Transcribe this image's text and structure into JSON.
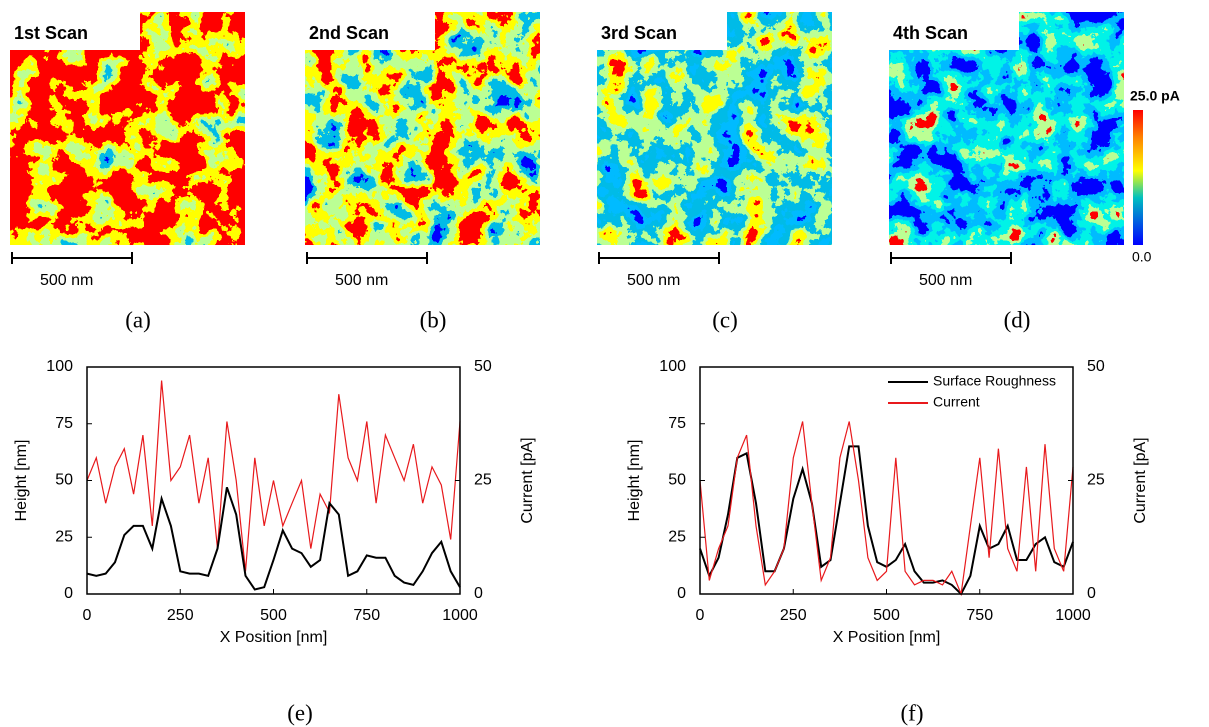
{
  "scans": [
    {
      "title": "1st Scan",
      "scale_bar": "500 nm",
      "caption": "(a)"
    },
    {
      "title": "2nd Scan",
      "scale_bar": "500 nm",
      "caption": "(b)"
    },
    {
      "title": "3rd Scan",
      "scale_bar": "500 nm",
      "caption": "(c)"
    },
    {
      "title": "4th Scan",
      "scale_bar": "500 nm",
      "caption": "(d)"
    }
  ],
  "colorbar": {
    "max_label": "25.0 pA",
    "min_label": "0.0"
  },
  "chart_data": [
    {
      "type": "line",
      "caption": "(e)",
      "xlabel": "X Position [nm]",
      "ylabel": "Height [nm]",
      "y2label": "Current [pA]",
      "xlim": [
        0,
        1000
      ],
      "xticks": [
        0,
        250,
        500,
        750,
        1000
      ],
      "ylim": [
        0,
        100
      ],
      "yticks": [
        0,
        25,
        50,
        75,
        100
      ],
      "y2lim": [
        0,
        50
      ],
      "y2ticks": [
        0,
        25,
        50
      ],
      "x": [
        0,
        25,
        50,
        75,
        100,
        125,
        150,
        175,
        200,
        225,
        250,
        275,
        300,
        325,
        350,
        375,
        400,
        425,
        450,
        475,
        500,
        525,
        550,
        575,
        600,
        625,
        650,
        675,
        700,
        725,
        750,
        775,
        800,
        825,
        850,
        875,
        900,
        925,
        950,
        975,
        1000
      ],
      "series": [
        {
          "color": "#e8191c",
          "axis": "y2",
          "values": [
            25,
            30,
            20,
            28,
            32,
            22,
            35,
            15,
            47,
            25,
            28,
            35,
            20,
            30,
            10,
            38,
            25,
            5,
            30,
            15,
            25,
            15,
            20,
            25,
            10,
            22,
            18,
            44,
            30,
            25,
            38,
            20,
            35,
            30,
            25,
            33,
            20,
            28,
            24,
            12,
            38
          ]
        },
        {
          "color": "#000000",
          "values": [
            9,
            8,
            9,
            14,
            26,
            30,
            30,
            20,
            42,
            30,
            10,
            9,
            9,
            8,
            20,
            47,
            35,
            8,
            2,
            3,
            15,
            28,
            20,
            18,
            12,
            15,
            40,
            35,
            8,
            10,
            17,
            16,
            16,
            8,
            5,
            4,
            10,
            18,
            23,
            10,
            3
          ]
        }
      ]
    },
    {
      "type": "line",
      "caption": "(f)",
      "xlabel": "X Position [nm]",
      "ylabel": "Height [nm]",
      "y2label": "Current [pA]",
      "legend": "upper right",
      "xlim": [
        0,
        1000
      ],
      "xticks": [
        0,
        250,
        500,
        750,
        1000
      ],
      "ylim": [
        0,
        100
      ],
      "yticks": [
        0,
        25,
        50,
        75,
        100
      ],
      "y2lim": [
        0,
        50
      ],
      "y2ticks": [
        0,
        25,
        50
      ],
      "x": [
        0,
        25,
        50,
        75,
        100,
        125,
        150,
        175,
        200,
        225,
        250,
        275,
        300,
        325,
        350,
        375,
        400,
        425,
        450,
        475,
        500,
        525,
        550,
        575,
        600,
        625,
        650,
        675,
        700,
        725,
        750,
        775,
        800,
        825,
        850,
        875,
        900,
        925,
        950,
        975,
        1000
      ],
      "series": [
        {
          "name": "Surface Roughness",
          "color": "#000000",
          "values": [
            20,
            8,
            16,
            35,
            60,
            62,
            40,
            10,
            10,
            20,
            42,
            55,
            40,
            12,
            15,
            40,
            65,
            65,
            30,
            14,
            12,
            15,
            22,
            10,
            5,
            5,
            6,
            4,
            0,
            8,
            30,
            20,
            22,
            30,
            15,
            15,
            22,
            25,
            14,
            12,
            23
          ]
        },
        {
          "name": "Current",
          "color": "#e8191c",
          "axis": "y2",
          "values": [
            25,
            3,
            10,
            15,
            30,
            35,
            15,
            2,
            5,
            10,
            30,
            38,
            20,
            3,
            8,
            30,
            38,
            25,
            8,
            3,
            5,
            30,
            5,
            2,
            3,
            3,
            2,
            5,
            0,
            15,
            30,
            8,
            32,
            10,
            5,
            28,
            5,
            33,
            10,
            5,
            28
          ]
        }
      ]
    }
  ]
}
